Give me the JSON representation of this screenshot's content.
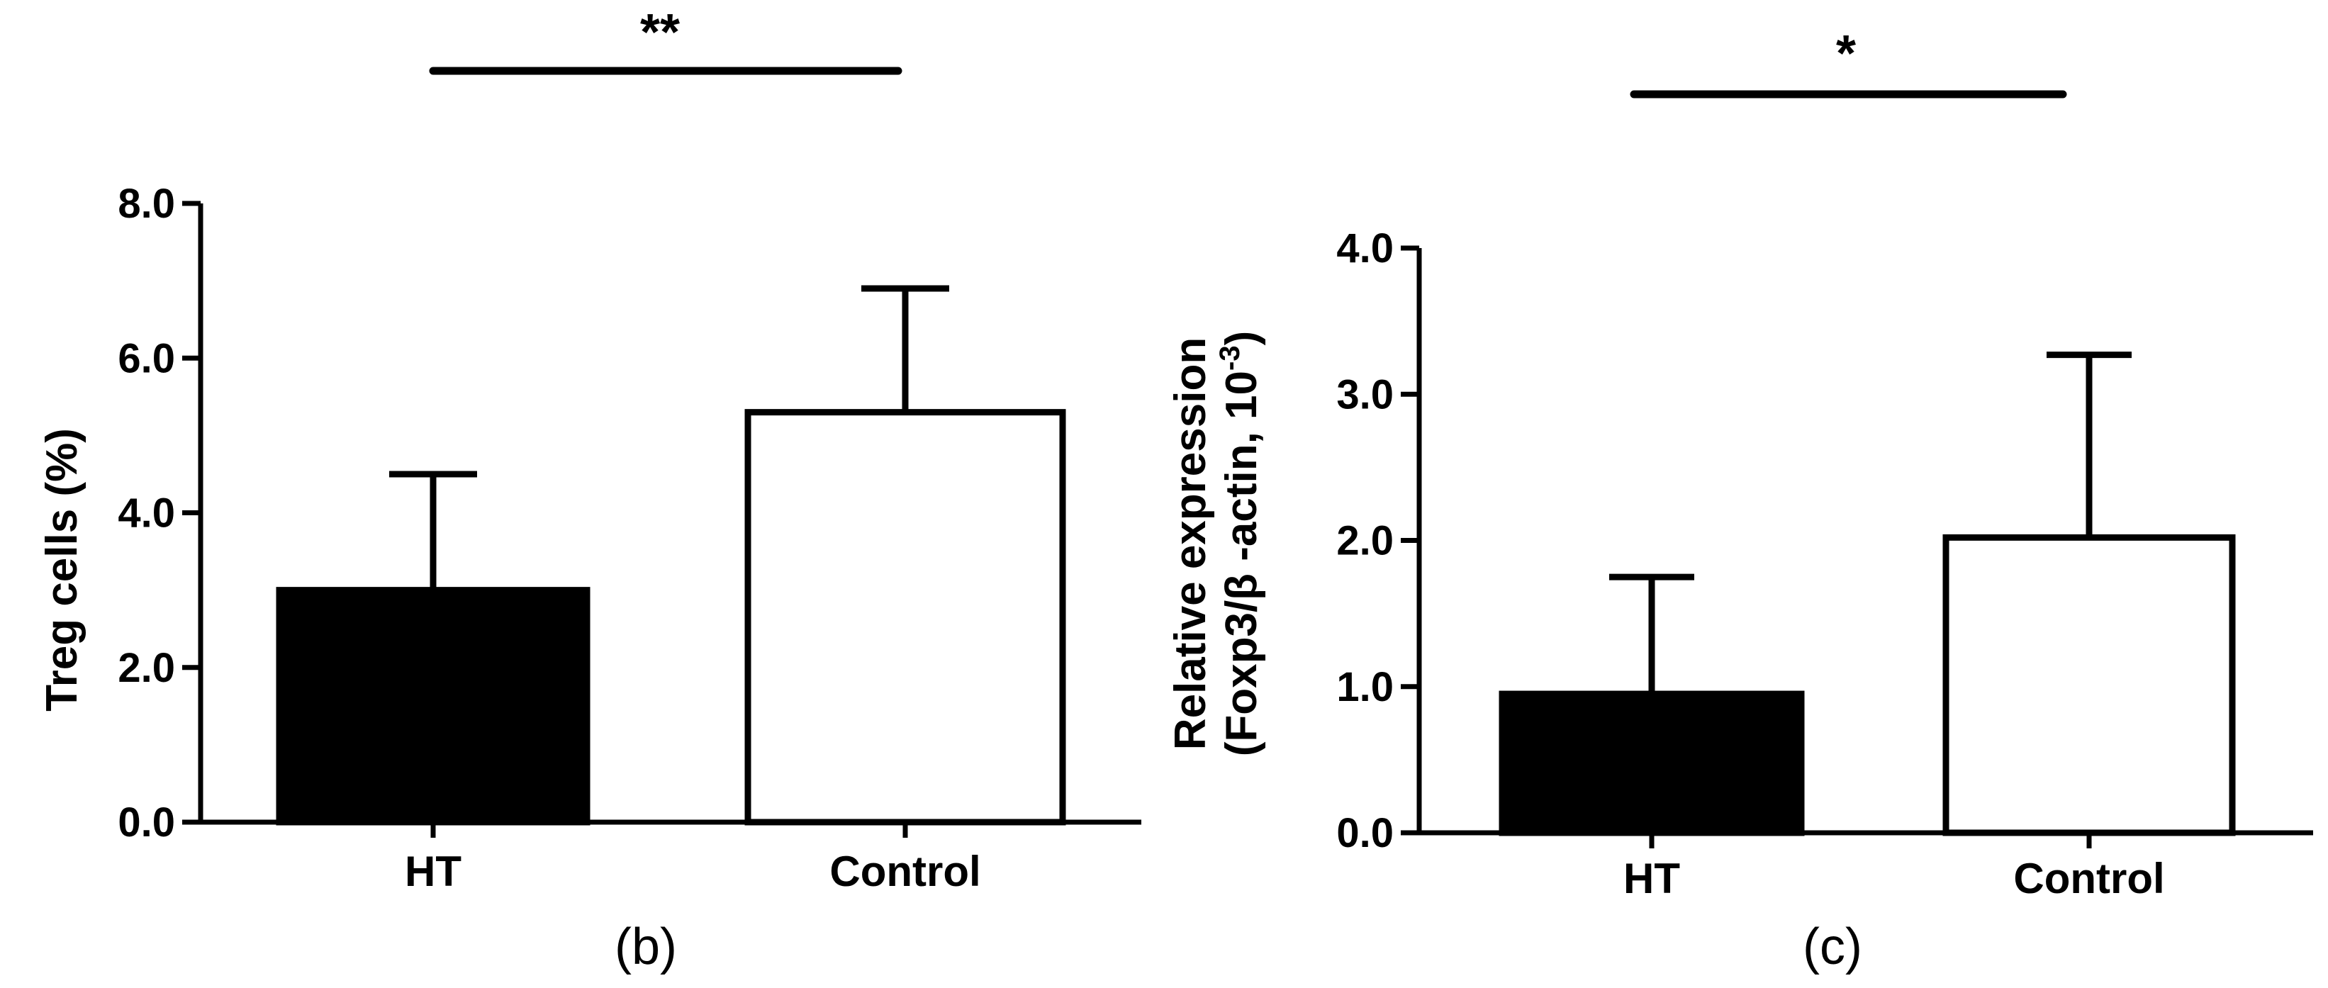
{
  "chart_data": [
    {
      "type": "bar",
      "panel_label": "(b)",
      "categories": [
        "HT",
        "Control"
      ],
      "values": [
        3.0,
        5.3
      ],
      "error_upper": [
        4.5,
        6.9
      ],
      "bar_fill": [
        "#000000",
        "#ffffff"
      ],
      "ylabel": "Treg cells (%)",
      "ylim": [
        0,
        8
      ],
      "yticks": [
        "0.0",
        "2.0",
        "4.0",
        "6.0",
        "8.0"
      ],
      "significance": "**"
    },
    {
      "type": "bar",
      "panel_label": "(c)",
      "categories": [
        "HT",
        "Control"
      ],
      "values": [
        0.95,
        2.02
      ],
      "error_upper": [
        1.75,
        3.27
      ],
      "bar_fill": [
        "#000000",
        "#ffffff"
      ],
      "ylabel_line1": "Relative expression",
      "ylabel_line2_main": "(Foxp3/β -actin, 10",
      "ylabel_line2_sup": "-3",
      "ylabel_line2_end": ")",
      "ylim": [
        0,
        4
      ],
      "yticks": [
        "0.0",
        "1.0",
        "2.0",
        "3.0",
        "4.0"
      ],
      "significance": "*"
    }
  ]
}
